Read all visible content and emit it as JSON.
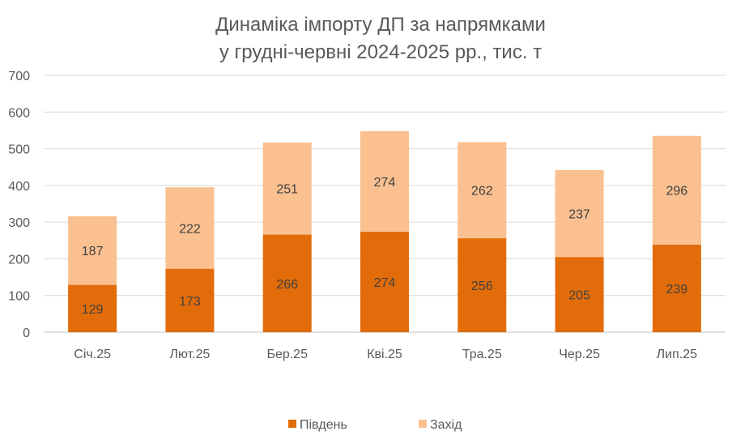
{
  "chart_data": {
    "type": "bar",
    "stacked": true,
    "title": [
      "Динаміка імпорту ДП за напрямками",
      "у грудні-червні 2024-2025 рр., тис. т"
    ],
    "xlabel": "",
    "ylabel": "",
    "ylim": [
      0,
      700
    ],
    "yticks": [
      0,
      100,
      200,
      300,
      400,
      500,
      600,
      700
    ],
    "grid": true,
    "legend_position": "bottom",
    "categories": [
      "Січ.25",
      "Лют.25",
      "Бер.25",
      "Кві.25",
      "Тра.25",
      "Чер.25",
      "Лип.25"
    ],
    "series": [
      {
        "name": "Південь",
        "color": "#E36C0A",
        "values": [
          129,
          173,
          266,
          274,
          256,
          205,
          239
        ]
      },
      {
        "name": "Захід",
        "color": "#FAC090",
        "values": [
          187,
          222,
          251,
          274,
          262,
          237,
          296
        ]
      }
    ]
  }
}
